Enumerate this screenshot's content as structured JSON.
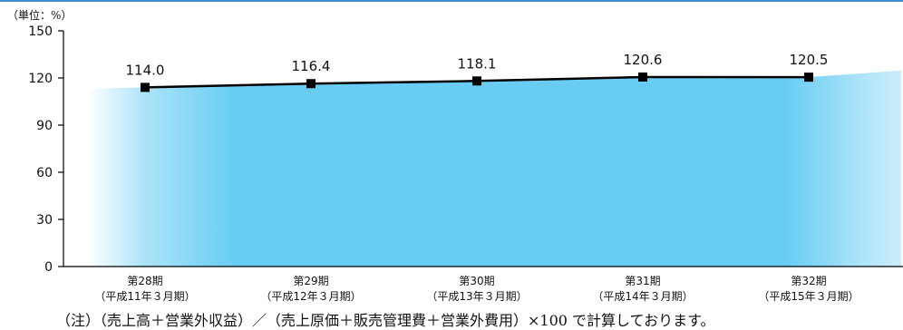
{
  "unit_label": "（単位：%）",
  "note": "（注）（売上高＋営業外収益）／（売上原価＋販売管理費＋営業外費用）×100 で計算しております。",
  "colors": {
    "area": "#69cdf3",
    "line": "#000000",
    "marker": "#000000",
    "rule": "#3b8fd0"
  },
  "chart_data": {
    "type": "line",
    "categories": [
      [
        "第28期",
        "（平成11年３月期）"
      ],
      [
        "第29期",
        "（平成12年３月期）"
      ],
      [
        "第30期",
        "（平成13年３月期）"
      ],
      [
        "第31期",
        "（平成14年３月期）"
      ],
      [
        "第32期",
        "（平成15年３月期）"
      ]
    ],
    "values": [
      114.0,
      116.4,
      118.1,
      120.6,
      120.5
    ],
    "value_labels": [
      "114.0",
      "116.4",
      "118.1",
      "120.6",
      "120.5"
    ],
    "yticks": [
      0,
      30,
      60,
      90,
      120,
      150
    ],
    "ylim": [
      0,
      150
    ],
    "grid": false,
    "area_fill": true
  }
}
